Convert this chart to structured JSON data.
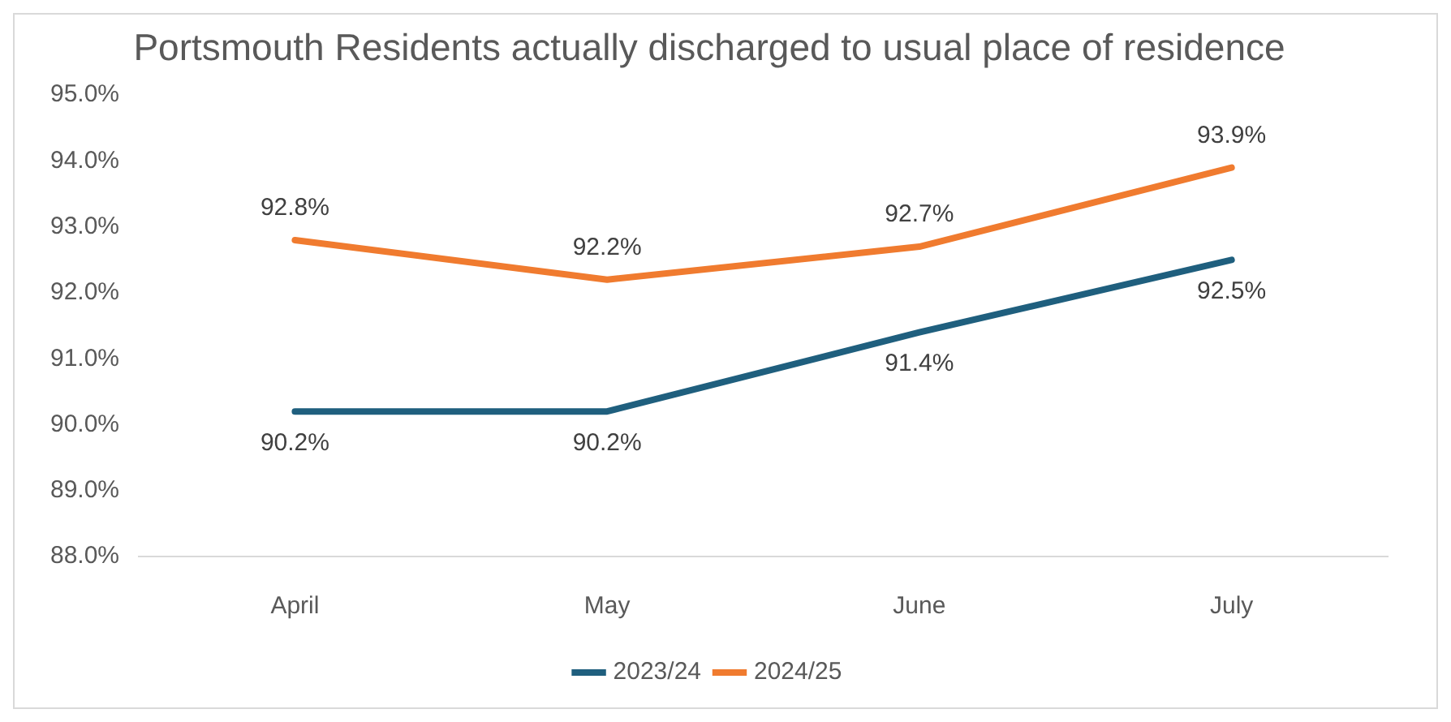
{
  "chart_data": {
    "type": "line",
    "title": "Portsmouth Residents actually discharged to usual place of residence",
    "categories": [
      "April",
      "May",
      "June",
      "July"
    ],
    "series": [
      {
        "name": "2023/24",
        "color": "#1f5f7e",
        "values": [
          90.2,
          90.2,
          91.4,
          92.5
        ],
        "value_labels": [
          "90.2%",
          "90.2%",
          "91.4%",
          "92.5%"
        ]
      },
      {
        "name": "2024/25",
        "color": "#f07b2f",
        "values": [
          92.8,
          92.2,
          92.7,
          93.9
        ],
        "value_labels": [
          "92.8%",
          "92.2%",
          "92.7%",
          "93.9%"
        ]
      }
    ],
    "ylim": [
      88,
      95
    ],
    "yticks": [
      {
        "value": 88,
        "label": "88.0%"
      },
      {
        "value": 89,
        "label": "89.0%"
      },
      {
        "value": 90,
        "label": "90.0%"
      },
      {
        "value": 91,
        "label": "91.0%"
      },
      {
        "value": 92,
        "label": "92.0%"
      },
      {
        "value": 93,
        "label": "93.0%"
      },
      {
        "value": 94,
        "label": "94.0%"
      },
      {
        "value": 95,
        "label": "95.0%"
      }
    ],
    "grid": false,
    "legend": "bottom",
    "marker": "none",
    "line_style": "solid"
  }
}
